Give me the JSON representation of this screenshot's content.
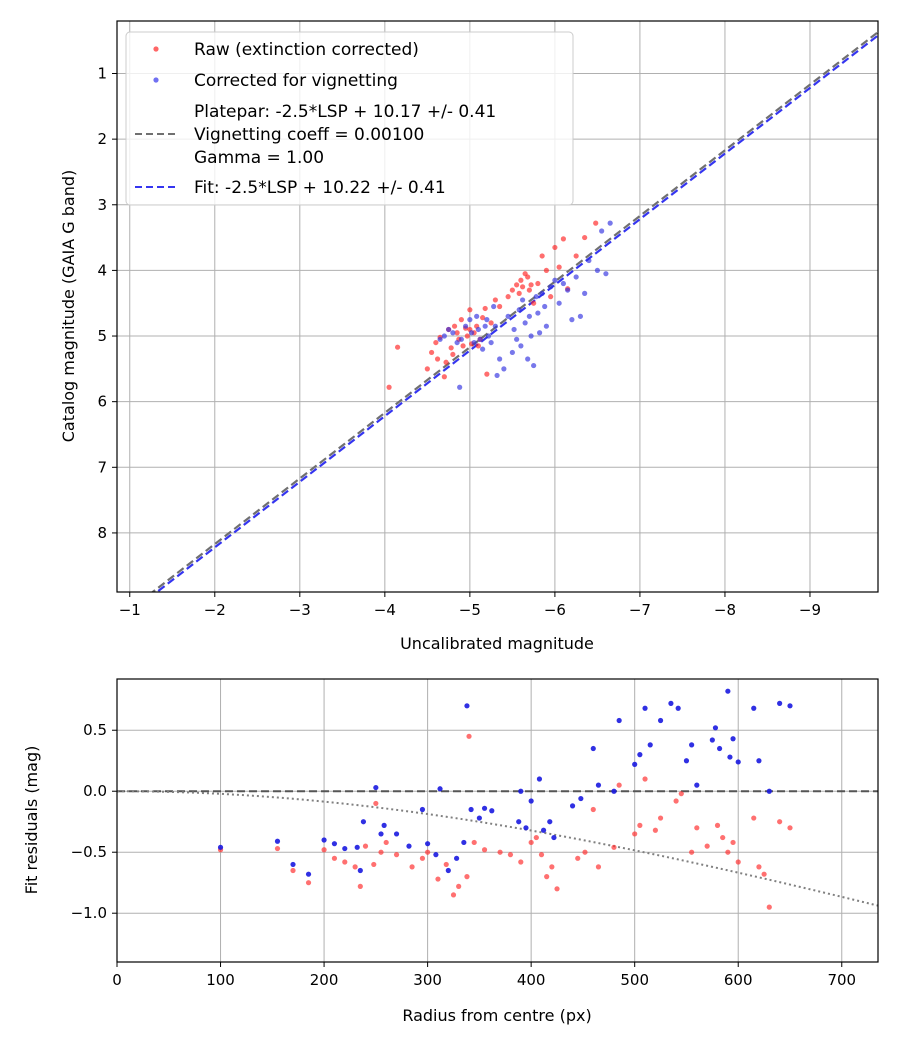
{
  "chart_data": [
    {
      "type": "scatter",
      "xlabel": "Uncalibrated magnitude",
      "ylabel": "Catalog magnitude (GAIA G band)",
      "xlim": [
        -0.85,
        -9.8
      ],
      "ylim": [
        8.9,
        0.2
      ],
      "x_reversed": true,
      "y_reversed": true,
      "grid": true,
      "legend_position": "top-left",
      "xticks": [
        -1,
        -2,
        -3,
        -4,
        -5,
        -6,
        -7,
        -8,
        -9
      ],
      "xtick_labels": [
        "−1",
        "−2",
        "−3",
        "−4",
        "−5",
        "−6",
        "−7",
        "−8",
        "−9"
      ],
      "yticks": [
        1,
        2,
        3,
        4,
        5,
        6,
        7,
        8
      ],
      "ytick_labels": [
        "1",
        "2",
        "3",
        "4",
        "5",
        "6",
        "7",
        "8"
      ],
      "colors": {
        "raw": "#ff2020",
        "corrected": "#3535e0",
        "platepar": "#707070",
        "fit": "#3535f0"
      },
      "legend": [
        {
          "label": "Raw (extinction corrected)",
          "kind": "marker",
          "color": "#ff3333"
        },
        {
          "label": "Corrected for vignetting",
          "kind": "marker",
          "color": "#4040ee"
        },
        {
          "label": [
            "Platepar: -2.5*LSP + 10.17 +/- 0.41",
            "Vignetting coeff = 0.00100",
            "Gamma = 1.00"
          ],
          "kind": "dashed",
          "color": "#707070"
        },
        {
          "label": "Fit: -2.5*LSP + 10.22 +/- 0.41",
          "kind": "dashed",
          "color": "#3535f0"
        }
      ],
      "lines": [
        {
          "name": "Platepar",
          "offset": 10.17,
          "color": "#707070"
        },
        {
          "name": "Fit",
          "offset": 10.22,
          "color": "#3535f0"
        }
      ],
      "series": [
        {
          "name": "Raw (extinction corrected)",
          "color": "#ff2020",
          "points": [
            [
              -4.05,
              5.78
            ],
            [
              -4.15,
              5.17
            ],
            [
              -4.5,
              5.5
            ],
            [
              -4.55,
              5.25
            ],
            [
              -4.6,
              5.1
            ],
            [
              -4.62,
              5.35
            ],
            [
              -4.65,
              5.02
            ],
            [
              -4.7,
              5.62
            ],
            [
              -4.72,
              5.4
            ],
            [
              -4.75,
              4.9
            ],
            [
              -4.78,
              5.18
            ],
            [
              -4.8,
              5.28
            ],
            [
              -4.82,
              4.85
            ],
            [
              -4.85,
              4.95
            ],
            [
              -4.87,
              5.05
            ],
            [
              -4.9,
              4.75
            ],
            [
              -4.92,
              5.15
            ],
            [
              -4.95,
              4.88
            ],
            [
              -4.97,
              5.0
            ],
            [
              -5.0,
              4.9
            ],
            [
              -5.0,
              4.6
            ],
            [
              -5.02,
              5.12
            ],
            [
              -5.05,
              4.95
            ],
            [
              -5.08,
              4.85
            ],
            [
              -5.1,
              5.15
            ],
            [
              -5.12,
              5.05
            ],
            [
              -5.15,
              4.72
            ],
            [
              -5.18,
              4.58
            ],
            [
              -5.2,
              5.58
            ],
            [
              -5.25,
              4.8
            ],
            [
              -5.3,
              4.45
            ],
            [
              -5.35,
              4.55
            ],
            [
              -5.45,
              4.4
            ],
            [
              -5.5,
              4.3
            ],
            [
              -5.55,
              4.22
            ],
            [
              -5.58,
              4.35
            ],
            [
              -5.6,
              4.15
            ],
            [
              -5.62,
              4.25
            ],
            [
              -5.65,
              4.05
            ],
            [
              -5.68,
              4.1
            ],
            [
              -5.7,
              4.3
            ],
            [
              -5.72,
              4.22
            ],
            [
              -5.75,
              4.5
            ],
            [
              -5.8,
              4.2
            ],
            [
              -5.85,
              3.78
            ],
            [
              -5.9,
              4.0
            ],
            [
              -5.95,
              4.4
            ],
            [
              -6.0,
              3.65
            ],
            [
              -6.05,
              3.95
            ],
            [
              -6.1,
              3.52
            ],
            [
              -6.15,
              4.28
            ],
            [
              -6.25,
              3.78
            ],
            [
              -6.35,
              3.5
            ],
            [
              -6.48,
              3.28
            ]
          ]
        },
        {
          "name": "Corrected for vignetting",
          "color": "#2f2fe0",
          "points": [
            [
              -4.65,
              5.05
            ],
            [
              -4.7,
              5.0
            ],
            [
              -4.75,
              4.9
            ],
            [
              -4.8,
              4.95
            ],
            [
              -4.85,
              5.1
            ],
            [
              -4.88,
              5.78
            ],
            [
              -4.9,
              5.05
            ],
            [
              -4.95,
              4.85
            ],
            [
              -5.0,
              4.75
            ],
            [
              -5.02,
              4.95
            ],
            [
              -5.05,
              5.1
            ],
            [
              -5.08,
              4.7
            ],
            [
              -5.1,
              4.9
            ],
            [
              -5.12,
              5.05
            ],
            [
              -5.15,
              5.2
            ],
            [
              -5.18,
              4.85
            ],
            [
              -5.2,
              4.75
            ],
            [
              -5.22,
              5.0
            ],
            [
              -5.25,
              5.1
            ],
            [
              -5.28,
              4.55
            ],
            [
              -5.3,
              4.85
            ],
            [
              -5.32,
              5.6
            ],
            [
              -5.35,
              5.35
            ],
            [
              -5.4,
              5.5
            ],
            [
              -5.45,
              4.7
            ],
            [
              -5.5,
              5.25
            ],
            [
              -5.52,
              4.9
            ],
            [
              -5.55,
              5.05
            ],
            [
              -5.58,
              4.6
            ],
            [
              -5.6,
              5.15
            ],
            [
              -5.62,
              4.45
            ],
            [
              -5.65,
              4.8
            ],
            [
              -5.68,
              5.35
            ],
            [
              -5.7,
              4.7
            ],
            [
              -5.72,
              5.0
            ],
            [
              -5.75,
              5.45
            ],
            [
              -5.78,
              4.4
            ],
            [
              -5.8,
              4.65
            ],
            [
              -5.82,
              4.95
            ],
            [
              -5.85,
              4.35
            ],
            [
              -5.88,
              4.55
            ],
            [
              -5.9,
              4.85
            ],
            [
              -5.95,
              4.25
            ],
            [
              -6.0,
              4.15
            ],
            [
              -6.05,
              4.5
            ],
            [
              -6.1,
              4.2
            ],
            [
              -6.15,
              4.3
            ],
            [
              -6.2,
              4.75
            ],
            [
              -6.25,
              4.1
            ],
            [
              -6.3,
              4.7
            ],
            [
              -6.35,
              4.35
            ],
            [
              -6.4,
              3.85
            ],
            [
              -6.5,
              4.0
            ],
            [
              -6.55,
              3.4
            ],
            [
              -6.6,
              4.05
            ],
            [
              -6.65,
              3.28
            ]
          ]
        }
      ]
    },
    {
      "type": "scatter",
      "xlabel": "Radius from centre (px)",
      "ylabel": "Fit residuals (mag)",
      "xlim": [
        0,
        735
      ],
      "ylim": [
        -1.4,
        0.92
      ],
      "grid": true,
      "xticks": [
        0,
        100,
        200,
        300,
        400,
        500,
        600,
        700
      ],
      "xtick_labels": [
        "0",
        "100",
        "200",
        "300",
        "400",
        "500",
        "600",
        "700"
      ],
      "yticks": [
        0.5,
        0.0,
        -0.5,
        -1.0
      ],
      "ytick_labels": [
        "0.5",
        "0.0",
        "−0.5",
        "−1.0"
      ],
      "reference_line": {
        "y": 0.0,
        "color": "#555555",
        "style": "dashed"
      },
      "vignetting_curve": {
        "coeff": 0.001,
        "gamma": 1.0,
        "color": "#808080",
        "style": "dotted"
      },
      "series": [
        {
          "name": "Raw (extinction corrected)",
          "color": "#ff3333",
          "points": [
            [
              100,
              -0.48
            ],
            [
              155,
              -0.47
            ],
            [
              170,
              -0.65
            ],
            [
              185,
              -0.75
            ],
            [
              200,
              -0.48
            ],
            [
              210,
              -0.55
            ],
            [
              220,
              -0.58
            ],
            [
              230,
              -0.62
            ],
            [
              235,
              -0.78
            ],
            [
              240,
              -0.45
            ],
            [
              248,
              -0.6
            ],
            [
              250,
              -0.1
            ],
            [
              255,
              -0.5
            ],
            [
              260,
              -0.42
            ],
            [
              270,
              -0.52
            ],
            [
              285,
              -0.62
            ],
            [
              295,
              -0.55
            ],
            [
              300,
              -0.5
            ],
            [
              310,
              -0.72
            ],
            [
              318,
              -0.6
            ],
            [
              325,
              -0.85
            ],
            [
              330,
              -0.78
            ],
            [
              338,
              -0.7
            ],
            [
              340,
              0.45
            ],
            [
              345,
              -0.42
            ],
            [
              355,
              -0.48
            ],
            [
              370,
              -0.5
            ],
            [
              380,
              -0.52
            ],
            [
              390,
              -0.58
            ],
            [
              400,
              -0.42
            ],
            [
              405,
              -0.38
            ],
            [
              410,
              -0.52
            ],
            [
              415,
              -0.7
            ],
            [
              420,
              -0.62
            ],
            [
              425,
              -0.8
            ],
            [
              445,
              -0.55
            ],
            [
              452,
              -0.5
            ],
            [
              460,
              -0.15
            ],
            [
              465,
              -0.62
            ],
            [
              480,
              -0.46
            ],
            [
              485,
              0.05
            ],
            [
              500,
              -0.35
            ],
            [
              505,
              -0.28
            ],
            [
              510,
              0.1
            ],
            [
              520,
              -0.32
            ],
            [
              525,
              -0.22
            ],
            [
              540,
              -0.08
            ],
            [
              545,
              -0.02
            ],
            [
              555,
              -0.5
            ],
            [
              560,
              -0.3
            ],
            [
              570,
              -0.45
            ],
            [
              580,
              -0.28
            ],
            [
              585,
              -0.38
            ],
            [
              590,
              -0.5
            ],
            [
              595,
              -0.42
            ],
            [
              600,
              -0.58
            ],
            [
              615,
              -0.22
            ],
            [
              620,
              -0.62
            ],
            [
              625,
              -0.68
            ],
            [
              630,
              -0.95
            ],
            [
              640,
              -0.25
            ],
            [
              650,
              -0.3
            ]
          ]
        },
        {
          "name": "Corrected for vignetting",
          "color": "#1a1ae0",
          "points": [
            [
              100,
              -0.46
            ],
            [
              155,
              -0.41
            ],
            [
              170,
              -0.6
            ],
            [
              185,
              -0.68
            ],
            [
              200,
              -0.4
            ],
            [
              210,
              -0.43
            ],
            [
              220,
              -0.47
            ],
            [
              232,
              -0.46
            ],
            [
              235,
              -0.65
            ],
            [
              238,
              -0.25
            ],
            [
              250,
              0.03
            ],
            [
              255,
              -0.35
            ],
            [
              258,
              -0.28
            ],
            [
              270,
              -0.35
            ],
            [
              282,
              -0.45
            ],
            [
              295,
              -0.15
            ],
            [
              300,
              -0.43
            ],
            [
              308,
              -0.52
            ],
            [
              312,
              0.02
            ],
            [
              320,
              -0.65
            ],
            [
              328,
              -0.55
            ],
            [
              335,
              -0.42
            ],
            [
              338,
              0.7
            ],
            [
              342,
              -0.15
            ],
            [
              350,
              -0.22
            ],
            [
              355,
              -0.14
            ],
            [
              362,
              -0.16
            ],
            [
              388,
              -0.25
            ],
            [
              390,
              0.0
            ],
            [
              395,
              -0.3
            ],
            [
              400,
              -0.08
            ],
            [
              408,
              0.1
            ],
            [
              412,
              -0.32
            ],
            [
              418,
              -0.25
            ],
            [
              422,
              -0.38
            ],
            [
              440,
              -0.12
            ],
            [
              448,
              -0.06
            ],
            [
              460,
              0.35
            ],
            [
              465,
              0.05
            ],
            [
              480,
              0.0
            ],
            [
              485,
              0.58
            ],
            [
              500,
              0.22
            ],
            [
              505,
              0.3
            ],
            [
              510,
              0.68
            ],
            [
              515,
              0.38
            ],
            [
              525,
              0.58
            ],
            [
              535,
              0.72
            ],
            [
              542,
              0.68
            ],
            [
              550,
              0.25
            ],
            [
              555,
              0.38
            ],
            [
              560,
              0.05
            ],
            [
              575,
              0.42
            ],
            [
              578,
              0.52
            ],
            [
              582,
              0.35
            ],
            [
              590,
              0.82
            ],
            [
              592,
              0.28
            ],
            [
              595,
              0.43
            ],
            [
              600,
              0.24
            ],
            [
              615,
              0.68
            ],
            [
              620,
              0.25
            ],
            [
              630,
              0.0
            ],
            [
              640,
              0.72
            ],
            [
              650,
              0.7
            ]
          ]
        }
      ]
    }
  ]
}
